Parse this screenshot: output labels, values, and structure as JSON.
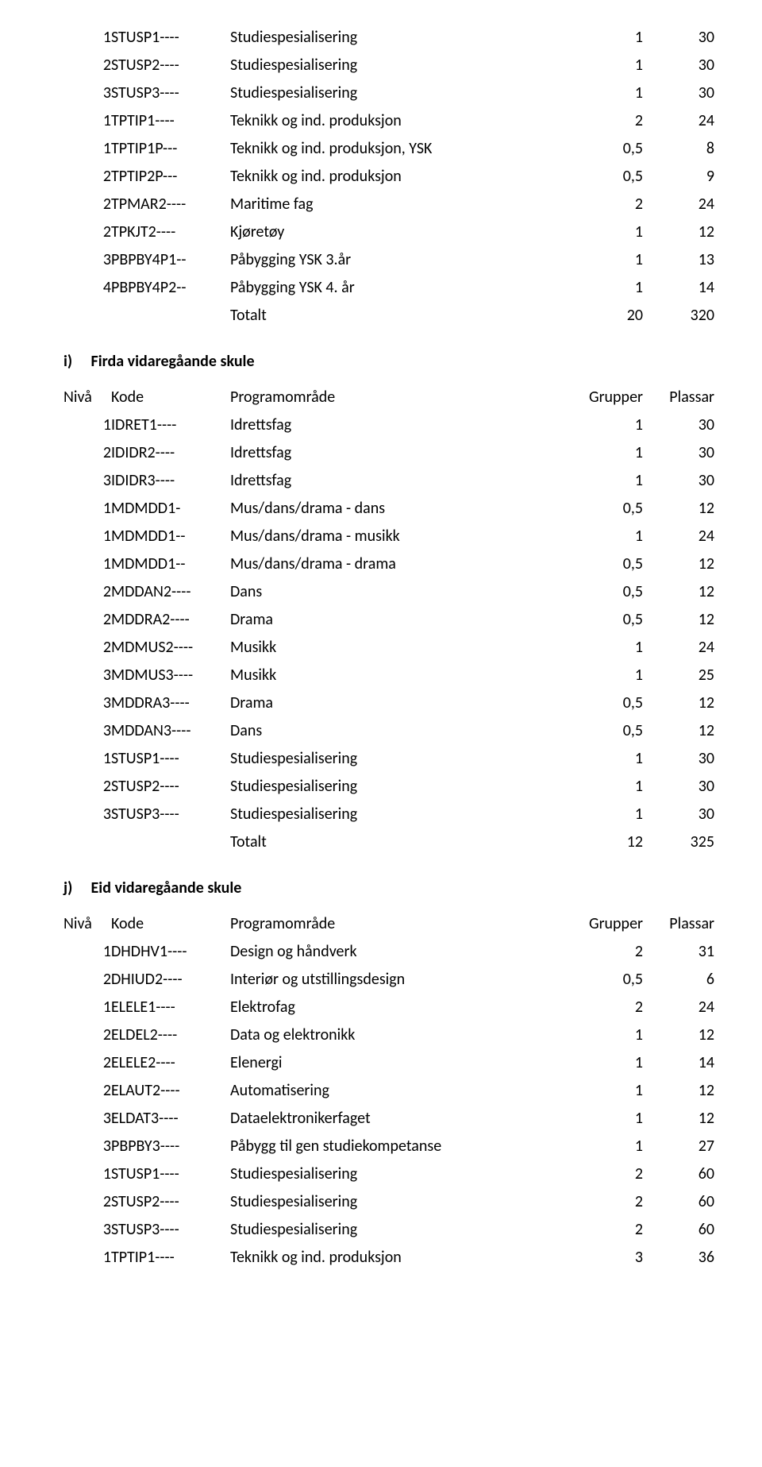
{
  "columns": {
    "nivaa": "Nivå",
    "kode": "Kode",
    "prog": "Programområde",
    "grp": "Grupper",
    "plass": "Plassar"
  },
  "totalt_label": "Totalt",
  "top_rows": [
    {
      "nivaa": "1",
      "kode": "STUSP1----",
      "prog": "Studiespesialisering",
      "grp": "1",
      "plass": "30"
    },
    {
      "nivaa": "2",
      "kode": "STUSP2----",
      "prog": "Studiespesialisering",
      "grp": "1",
      "plass": "30"
    },
    {
      "nivaa": "3",
      "kode": "STUSP3----",
      "prog": "Studiespesialisering",
      "grp": "1",
      "plass": "30"
    },
    {
      "nivaa": "1",
      "kode": "TPTIP1----",
      "prog": "Teknikk og ind. produksjon",
      "grp": "2",
      "plass": "24"
    },
    {
      "nivaa": "1",
      "kode": "TPTIP1P---",
      "prog": "Teknikk og ind. produksjon, YSK",
      "grp": "0,5",
      "plass": "8"
    },
    {
      "nivaa": "2",
      "kode": "TPTIP2P---",
      "prog": "Teknikk og ind. produksjon",
      "grp": "0,5",
      "plass": "9"
    },
    {
      "nivaa": "2",
      "kode": "TPMAR2----",
      "prog": "Maritime fag",
      "grp": "2",
      "plass": "24"
    },
    {
      "nivaa": "2",
      "kode": "TPKJT2----",
      "prog": "Kjøretøy",
      "grp": "1",
      "plass": "12"
    },
    {
      "nivaa": "3",
      "kode": "PBPBY4P1--",
      "prog": "Påbygging YSK 3.år",
      "grp": "1",
      "plass": "13"
    },
    {
      "nivaa": "4",
      "kode": "PBPBY4P2--",
      "prog": "Påbygging YSK 4. år",
      "grp": "1",
      "plass": "14"
    }
  ],
  "top_total": {
    "grp": "20",
    "plass": "320"
  },
  "section_i": {
    "letter": "i)",
    "title": "Firda vidaregåande skule"
  },
  "i_rows": [
    {
      "nivaa": "1",
      "kode": "IDRET1----",
      "prog": "Idrettsfag",
      "grp": "1",
      "plass": "30"
    },
    {
      "nivaa": "2",
      "kode": "IDIDR2----",
      "prog": "Idrettsfag",
      "grp": "1",
      "plass": "30"
    },
    {
      "nivaa": "3",
      "kode": "IDIDR3----",
      "prog": "Idrettsfag",
      "grp": "1",
      "plass": "30"
    },
    {
      "nivaa": "1",
      "kode": "MDMDD1-",
      "prog": "Mus/dans/drama - dans",
      "grp": "0,5",
      "plass": "12"
    },
    {
      "nivaa": "1",
      "kode": "MDMDD1--",
      "prog": "Mus/dans/drama - musikk",
      "grp": "1",
      "plass": "24"
    },
    {
      "nivaa": "1",
      "kode": "MDMDD1--",
      "prog": "Mus/dans/drama - drama",
      "grp": "0,5",
      "plass": "12"
    },
    {
      "nivaa": "2",
      "kode": "MDDAN2----",
      "prog": "Dans",
      "grp": "0,5",
      "plass": "12"
    },
    {
      "nivaa": "2",
      "kode": "MDDRA2----",
      "prog": "Drama",
      "grp": "0,5",
      "plass": "12"
    },
    {
      "nivaa": "2",
      "kode": "MDMUS2----",
      "prog": "Musikk",
      "grp": "1",
      "plass": "24"
    },
    {
      "nivaa": "3",
      "kode": "MDMUS3----",
      "prog": "Musikk",
      "grp": "1",
      "plass": "25"
    },
    {
      "nivaa": "3",
      "kode": "MDDRA3----",
      "prog": "Drama",
      "grp": "0,5",
      "plass": "12"
    },
    {
      "nivaa": "3",
      "kode": "MDDAN3----",
      "prog": "Dans",
      "grp": "0,5",
      "plass": "12"
    },
    {
      "nivaa": "1",
      "kode": "STUSP1----",
      "prog": "Studiespesialisering",
      "grp": "1",
      "plass": "30"
    },
    {
      "nivaa": "2",
      "kode": "STUSP2----",
      "prog": "Studiespesialisering",
      "grp": "1",
      "plass": "30"
    },
    {
      "nivaa": "3",
      "kode": "STUSP3----",
      "prog": "Studiespesialisering",
      "grp": "1",
      "plass": "30"
    }
  ],
  "i_total": {
    "grp": "12",
    "plass": "325"
  },
  "section_j": {
    "letter": "j)",
    "title": "Eid vidaregåande skule"
  },
  "j_rows": [
    {
      "nivaa": "1",
      "kode": "DHDHV1----",
      "prog": "Design og håndverk",
      "grp": "2",
      "plass": "31"
    },
    {
      "nivaa": "2",
      "kode": "DHIUD2----",
      "prog": "Interiør og utstillingsdesign",
      "grp": "0,5",
      "plass": "6"
    },
    {
      "nivaa": "1",
      "kode": "ELELE1----",
      "prog": "Elektrofag",
      "grp": "2",
      "plass": "24"
    },
    {
      "nivaa": "2",
      "kode": "ELDEL2----",
      "prog": "Data og elektronikk",
      "grp": "1",
      "plass": "12"
    },
    {
      "nivaa": "2",
      "kode": "ELELE2----",
      "prog": "Elenergi",
      "grp": "1",
      "plass": "14"
    },
    {
      "nivaa": "2",
      "kode": "ELAUT2----",
      "prog": "Automatisering",
      "grp": "1",
      "plass": "12"
    },
    {
      "nivaa": "3",
      "kode": "ELDAT3----",
      "prog": "Dataelektronikerfaget",
      "grp": "1",
      "plass": "12"
    },
    {
      "nivaa": "3",
      "kode": "PBPBY3----",
      "prog": "Påbygg til gen studiekompetanse",
      "grp": "1",
      "plass": "27"
    },
    {
      "nivaa": "1",
      "kode": "STUSP1----",
      "prog": "Studiespesialisering",
      "grp": "2",
      "plass": "60"
    },
    {
      "nivaa": "2",
      "kode": "STUSP2----",
      "prog": "Studiespesialisering",
      "grp": "2",
      "plass": "60"
    },
    {
      "nivaa": "3",
      "kode": "STUSP3----",
      "prog": "Studiespesialisering",
      "grp": "2",
      "plass": "60"
    },
    {
      "nivaa": "1",
      "kode": "TPTIP1----",
      "prog": "Teknikk og ind. produksjon",
      "grp": "3",
      "plass": "36"
    }
  ]
}
